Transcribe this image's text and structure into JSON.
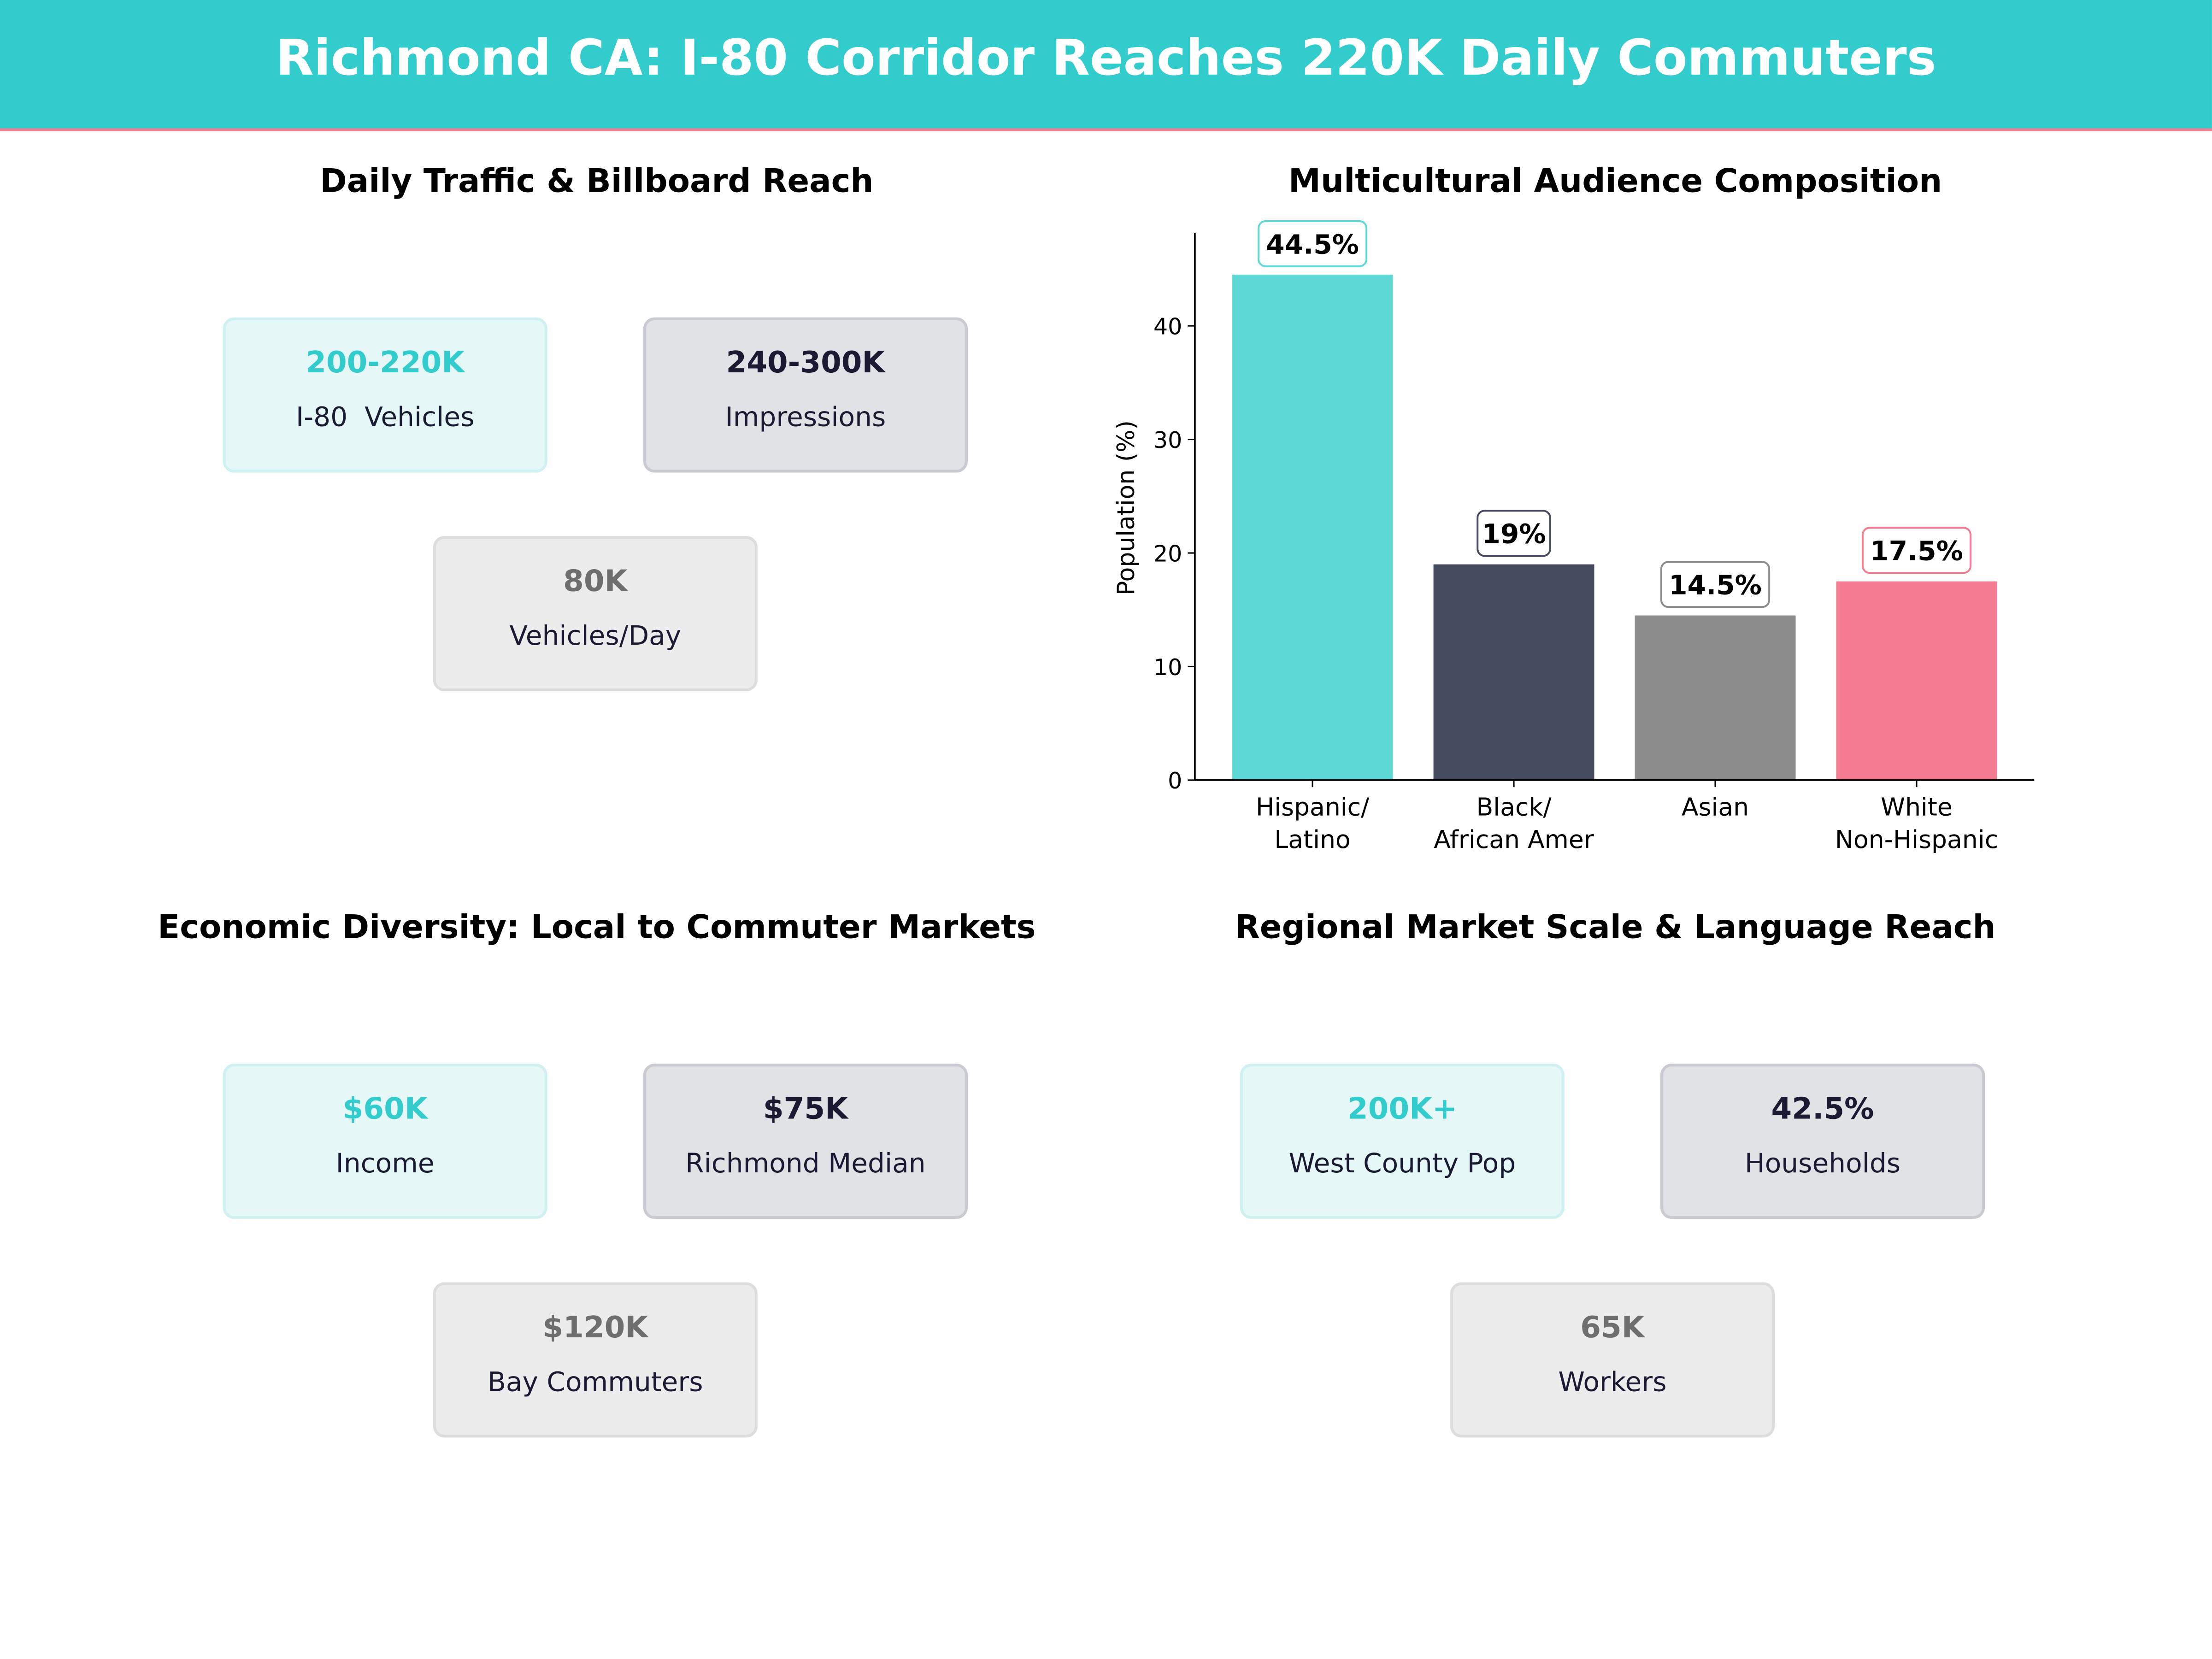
{
  "header": {
    "title": "Richmond CA: I-80 Corridor Reaches 220K Daily Commuters",
    "color": "#33CCCC",
    "accent": "#F47C92"
  },
  "panels": [
    {
      "title": "Daily Traffic & Billboard Reach",
      "cards": [
        {
          "value": "200-220K",
          "label": "I-80  Vehicles"
        },
        {
          "value": "240-300K",
          "label": "Impressions"
        },
        {
          "value": "80K",
          "label": "Vehicles/Day"
        }
      ]
    },
    {
      "title": "Economic Diversity: Local to Commuter Markets",
      "cards": [
        {
          "value": "$60K",
          "label": "Income"
        },
        {
          "value": "$75K",
          "label": "Richmond Median"
        },
        {
          "value": "$120K",
          "label": "Bay Commuters"
        }
      ]
    },
    {
      "title": "Regional Market Scale & Language Reach",
      "cards": [
        {
          "value": "200K+",
          "label": "West County Pop"
        },
        {
          "value": "42.5%",
          "label": "Households"
        },
        {
          "value": "65K",
          "label": "Workers"
        }
      ]
    }
  ],
  "chart_data": {
    "type": "bar",
    "title": "Multicultural Audience Composition",
    "categories": [
      "Hispanic/\nLatino",
      "Black/\nAfrican Amer",
      "Asian",
      "White\nNon-Hispanic"
    ],
    "values": [
      44.5,
      19,
      14.5,
      17.5
    ],
    "data_labels": [
      "44.5%",
      "19%",
      "14.5%",
      "17.5%"
    ],
    "colors": [
      "#5DD8D4",
      "#464A5E",
      "#8C8C8C",
      "#F47C92"
    ],
    "label_border_colors": [
      "#5DD8D4",
      "#464A5E",
      "#8C8C8C",
      "#F47C92"
    ],
    "xlabel": "",
    "ylabel": "Population (%)",
    "ylim": [
      0,
      48
    ],
    "yticks": [
      0,
      10,
      20,
      30,
      40
    ],
    "grid": false
  }
}
